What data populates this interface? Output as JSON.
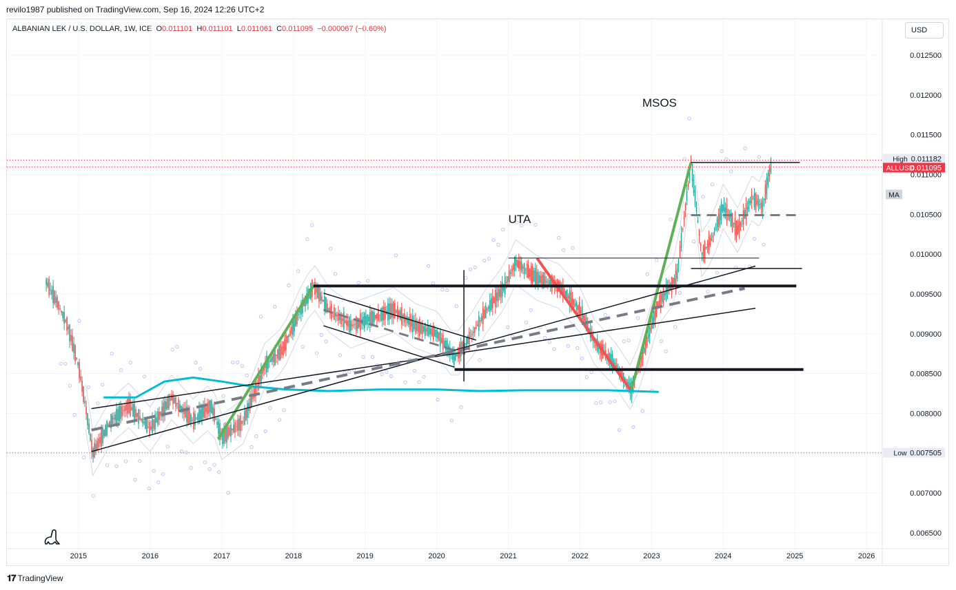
{
  "header": {
    "published": "revilo1987 published on TradingView.com, Sep 16, 2024 12:26 UTC+2"
  },
  "legend": {
    "symbol": "ALBANIAN LEK / U.S. DOLLAR, 1W, ICE",
    "o_label": "O",
    "o": "0.011101",
    "h_label": "H",
    "h": "0.011101",
    "l_label": "L",
    "l": "0.011061",
    "c_label": "C",
    "c": "0.011095",
    "chg": "−0.000067 (−0.60%)"
  },
  "currency_button": "USD",
  "chart_data": {
    "type": "line",
    "title": "ALBANIAN LEK / U.S. DOLLAR, 1W, ICE",
    "xlabel": "",
    "ylabel": "",
    "ylim": [
      0.0063,
      0.01295
    ],
    "xlim": [
      2014.0,
      2026.22
    ],
    "x_ticks": [
      {
        "v": 2015,
        "label": "2015"
      },
      {
        "v": 2016,
        "label": "2016"
      },
      {
        "v": 2017,
        "label": "2017"
      },
      {
        "v": 2018,
        "label": "2018"
      },
      {
        "v": 2019,
        "label": "2019"
      },
      {
        "v": 2020,
        "label": "2020"
      },
      {
        "v": 2021,
        "label": "2021"
      },
      {
        "v": 2022,
        "label": "2022"
      },
      {
        "v": 2023,
        "label": "2023"
      },
      {
        "v": 2024,
        "label": "2024"
      },
      {
        "v": 2025,
        "label": "2025"
      },
      {
        "v": 2026,
        "label": "2026"
      }
    ],
    "y_ticks": [
      {
        "v": 0.0125,
        "label": "0.012500"
      },
      {
        "v": 0.012,
        "label": "0.012000"
      },
      {
        "v": 0.0115,
        "label": "0.011500"
      },
      {
        "v": 0.011,
        "label": "0.011000"
      },
      {
        "v": 0.0105,
        "label": "0.010500"
      },
      {
        "v": 0.01,
        "label": "0.010000"
      },
      {
        "v": 0.0095,
        "label": "0.009500"
      },
      {
        "v": 0.009,
        "label": "0.009000"
      },
      {
        "v": 0.0085,
        "label": "0.008500"
      },
      {
        "v": 0.008,
        "label": "0.008000"
      },
      {
        "v": 0.0075,
        "label": "0.007500"
      },
      {
        "v": 0.007,
        "label": "0.007000"
      },
      {
        "v": 0.0065,
        "label": "0.006500"
      }
    ],
    "price_path": [
      [
        2014.55,
        0.00965
      ],
      [
        2014.7,
        0.0094
      ],
      [
        2014.85,
        0.0091
      ],
      [
        2015.0,
        0.0086
      ],
      [
        2015.1,
        0.00808
      ],
      [
        2015.2,
        0.0075
      ],
      [
        2015.45,
        0.0079
      ],
      [
        2015.7,
        0.0081
      ],
      [
        2016.0,
        0.0078
      ],
      [
        2016.3,
        0.0082
      ],
      [
        2016.6,
        0.0079
      ],
      [
        2016.85,
        0.0081
      ],
      [
        2017.0,
        0.0077
      ],
      [
        2017.3,
        0.0079
      ],
      [
        2017.6,
        0.0086
      ],
      [
        2017.85,
        0.0088
      ],
      [
        2018.1,
        0.0093
      ],
      [
        2018.28,
        0.0096
      ],
      [
        2018.5,
        0.0093
      ],
      [
        2018.8,
        0.0091
      ],
      [
        2019.1,
        0.0092
      ],
      [
        2019.4,
        0.0093
      ],
      [
        2019.7,
        0.0091
      ],
      [
        2020.0,
        0.009
      ],
      [
        2020.25,
        0.0087
      ],
      [
        2020.5,
        0.009
      ],
      [
        2020.7,
        0.0093
      ],
      [
        2020.95,
        0.0096
      ],
      [
        2021.1,
        0.0099
      ],
      [
        2021.4,
        0.0097
      ],
      [
        2021.7,
        0.0096
      ],
      [
        2022.0,
        0.0093
      ],
      [
        2022.2,
        0.0089
      ],
      [
        2022.5,
        0.0086
      ],
      [
        2022.72,
        0.0083
      ],
      [
        2022.9,
        0.0088
      ],
      [
        2023.1,
        0.0094
      ],
      [
        2023.35,
        0.0097
      ],
      [
        2023.55,
        0.01115
      ],
      [
        2023.7,
        0.01
      ],
      [
        2023.85,
        0.0102
      ],
      [
        2024.0,
        0.0106
      ],
      [
        2024.2,
        0.0103
      ],
      [
        2024.4,
        0.0107
      ],
      [
        2024.55,
        0.0106
      ],
      [
        2024.68,
        0.01118
      ]
    ],
    "high_marker": {
      "label": "High",
      "value": "0.011182",
      "price": 0.011182
    },
    "last_marker": {
      "label": "ALLUSD",
      "value": "0.011095",
      "price": 0.011095,
      "color": "#f23645"
    },
    "low_marker": {
      "label": "Low",
      "value": "0.007505",
      "price": 0.007505
    },
    "ma_marker": {
      "label": "MA",
      "price": 0.01075
    },
    "cyan_ma": [
      [
        2015.35,
        0.0082
      ],
      [
        2015.8,
        0.0082
      ],
      [
        2016.2,
        0.0084
      ],
      [
        2016.6,
        0.00845
      ],
      [
        2017.0,
        0.0084
      ],
      [
        2017.4,
        0.00834
      ],
      [
        2017.9,
        0.0083
      ],
      [
        2018.5,
        0.00828
      ],
      [
        2019.2,
        0.0083
      ],
      [
        2020.0,
        0.0083
      ],
      [
        2020.6,
        0.00828
      ],
      [
        2021.2,
        0.00829
      ],
      [
        2021.8,
        0.00829
      ],
      [
        2022.4,
        0.00829
      ],
      [
        2023.1,
        0.00827
      ]
    ],
    "trend_lines": [
      {
        "name": "green-leg-1",
        "color": "#5fb157",
        "width": 4,
        "dash": "",
        "x1": 2016.95,
        "y1": 0.00768,
        "x2": 2018.28,
        "y2": 0.0096
      },
      {
        "name": "green-leg-2",
        "color": "#5fb157",
        "width": 4,
        "dash": "",
        "x1": 2022.72,
        "y1": 0.0083,
        "x2": 2023.55,
        "y2": 0.01115
      },
      {
        "name": "red-leg",
        "color": "#f05353",
        "width": 4,
        "dash": "",
        "x1": 2021.4,
        "y1": 0.00995,
        "x2": 2022.7,
        "y2": 0.0083
      },
      {
        "name": "channel-lower",
        "color": "#131722",
        "width": 1.5,
        "dash": "",
        "x1": 2015.18,
        "y1": 0.00752,
        "x2": 2024.45,
        "y2": 0.00985
      },
      {
        "name": "channel-upper",
        "color": "#131722",
        "width": 1.5,
        "dash": "",
        "x1": 2015.18,
        "y1": 0.00806,
        "x2": 2024.45,
        "y2": 0.00932
      },
      {
        "name": "channel-mid",
        "color": "#787b86",
        "width": 4,
        "dash": "16 10",
        "x1": 2015.18,
        "y1": 0.00779,
        "x2": 2024.3,
        "y2": 0.00957
      },
      {
        "name": "flag-upper",
        "color": "#131722",
        "width": 1.5,
        "dash": "",
        "x1": 2018.42,
        "y1": 0.00951,
        "x2": 2020.55,
        "y2": 0.00892
      },
      {
        "name": "flag-lower",
        "color": "#131722",
        "width": 1.5,
        "dash": "",
        "x1": 2018.42,
        "y1": 0.0091,
        "x2": 2020.25,
        "y2": 0.00858
      },
      {
        "name": "flag-mid",
        "color": "#787b86",
        "width": 3,
        "dash": "14 9",
        "x1": 2018.42,
        "y1": 0.0093,
        "x2": 2020.4,
        "y2": 0.00875
      },
      {
        "name": "resistance-9600",
        "color": "#131722",
        "width": 4,
        "dash": "",
        "x1": 2018.28,
        "y1": 0.0096,
        "x2": 2025.02,
        "y2": 0.0096
      },
      {
        "name": "support-8550",
        "color": "#131722",
        "width": 4,
        "dash": "",
        "x1": 2020.25,
        "y1": 0.00855,
        "x2": 2025.12,
        "y2": 0.00855
      },
      {
        "name": "uta-top",
        "color": "#131722",
        "width": 1,
        "dash": "",
        "x1": 2021.0,
        "y1": 0.00995,
        "x2": 2024.5,
        "y2": 0.00995
      },
      {
        "name": "msos-top",
        "color": "#131722",
        "width": 1.5,
        "dash": "",
        "x1": 2023.55,
        "y1": 0.01115,
        "x2": 2025.07,
        "y2": 0.01115
      },
      {
        "name": "msos-low",
        "color": "#131722",
        "width": 1.5,
        "dash": "",
        "x1": 2023.55,
        "y1": 0.00982,
        "x2": 2025.1,
        "y2": 0.00982
      },
      {
        "name": "msos-mid",
        "color": "#787b86",
        "width": 3,
        "dash": "14 9",
        "x1": 2023.55,
        "y1": 0.01049,
        "x2": 2025.07,
        "y2": 0.01049
      },
      {
        "name": "vertical-2020",
        "color": "#131722",
        "width": 1.5,
        "dash": "",
        "x1": 2020.38,
        "y1": 0.0098,
        "x2": 2020.38,
        "y2": 0.0084
      }
    ],
    "annotations": [
      {
        "text": "UTA",
        "x": 2021.0,
        "y": 0.01039
      },
      {
        "text": "MSOS",
        "x": 2022.87,
        "y": 0.01185
      }
    ]
  },
  "footer": {
    "brand": "TradingView"
  }
}
